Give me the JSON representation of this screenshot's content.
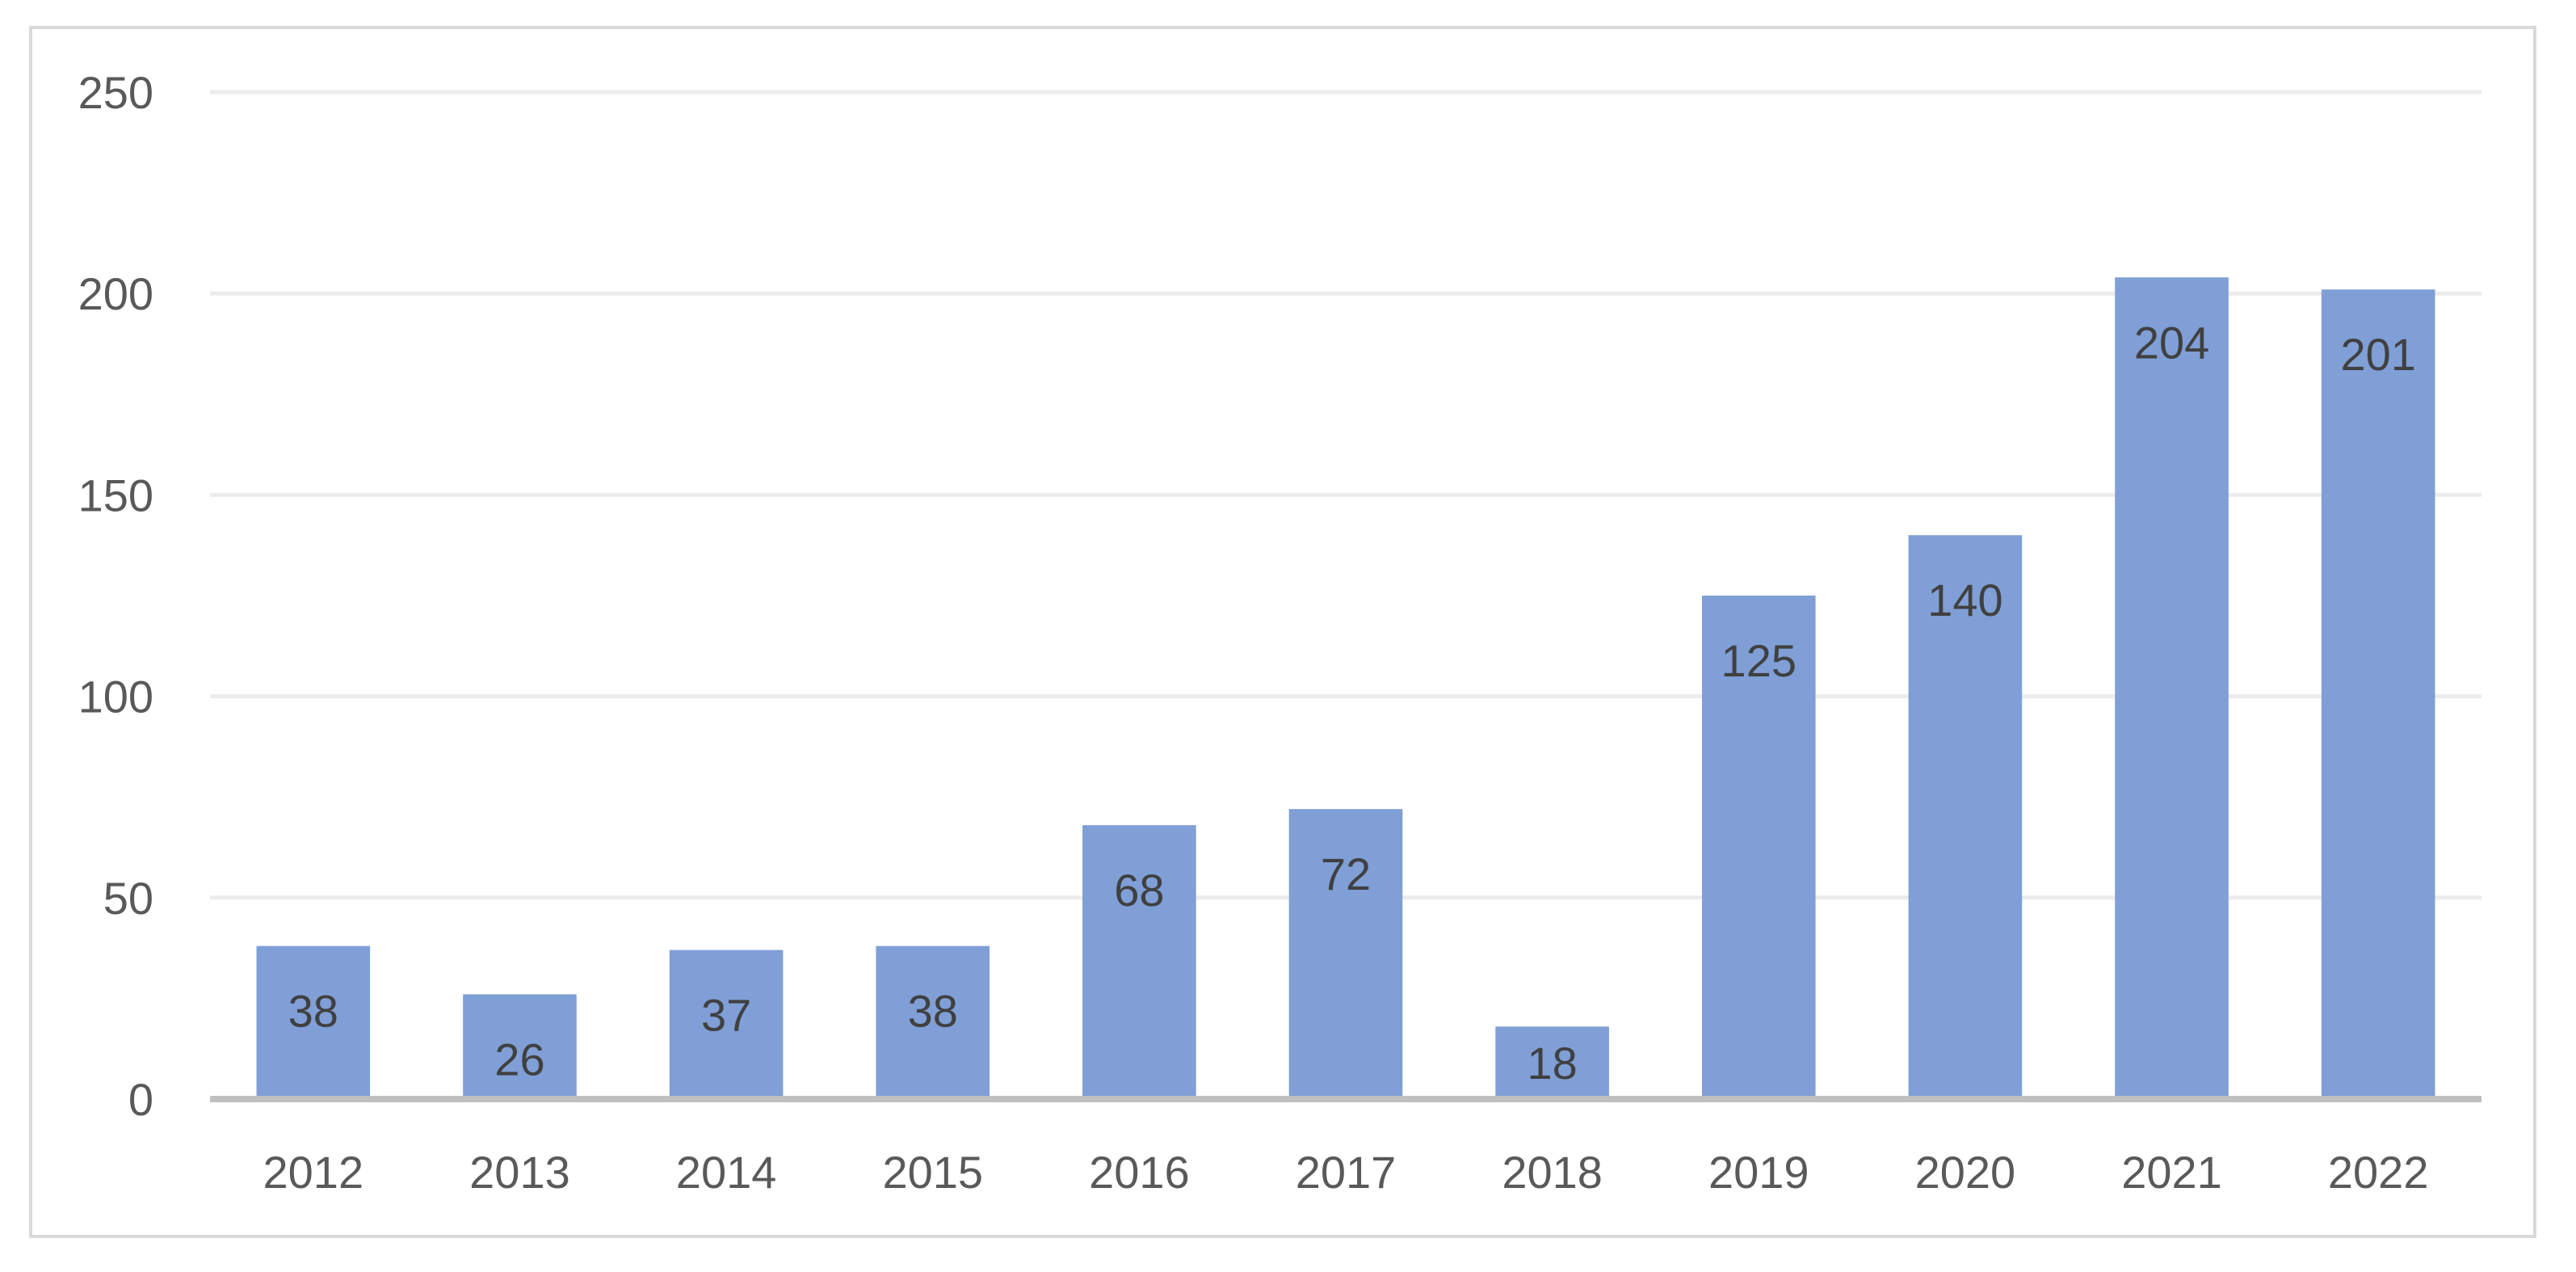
{
  "chart_data": {
    "type": "bar",
    "categories": [
      "2012",
      "2013",
      "2014",
      "2015",
      "2016",
      "2017",
      "2018",
      "2019",
      "2020",
      "2021",
      "2022"
    ],
    "values": [
      38,
      26,
      37,
      38,
      68,
      72,
      18,
      125,
      140,
      204,
      201
    ],
    "title": "",
    "xlabel": "",
    "ylabel": "",
    "ylim": [
      0,
      250
    ],
    "yticks": [
      0,
      50,
      100,
      150,
      200,
      250
    ],
    "grid": true,
    "legend": "none",
    "data_labels": "inside-end",
    "bar_color": "#7f9fd6",
    "gridline_color": "#ececec",
    "axis_line_color": "#bfbfbf",
    "text_color": "#595959"
  }
}
